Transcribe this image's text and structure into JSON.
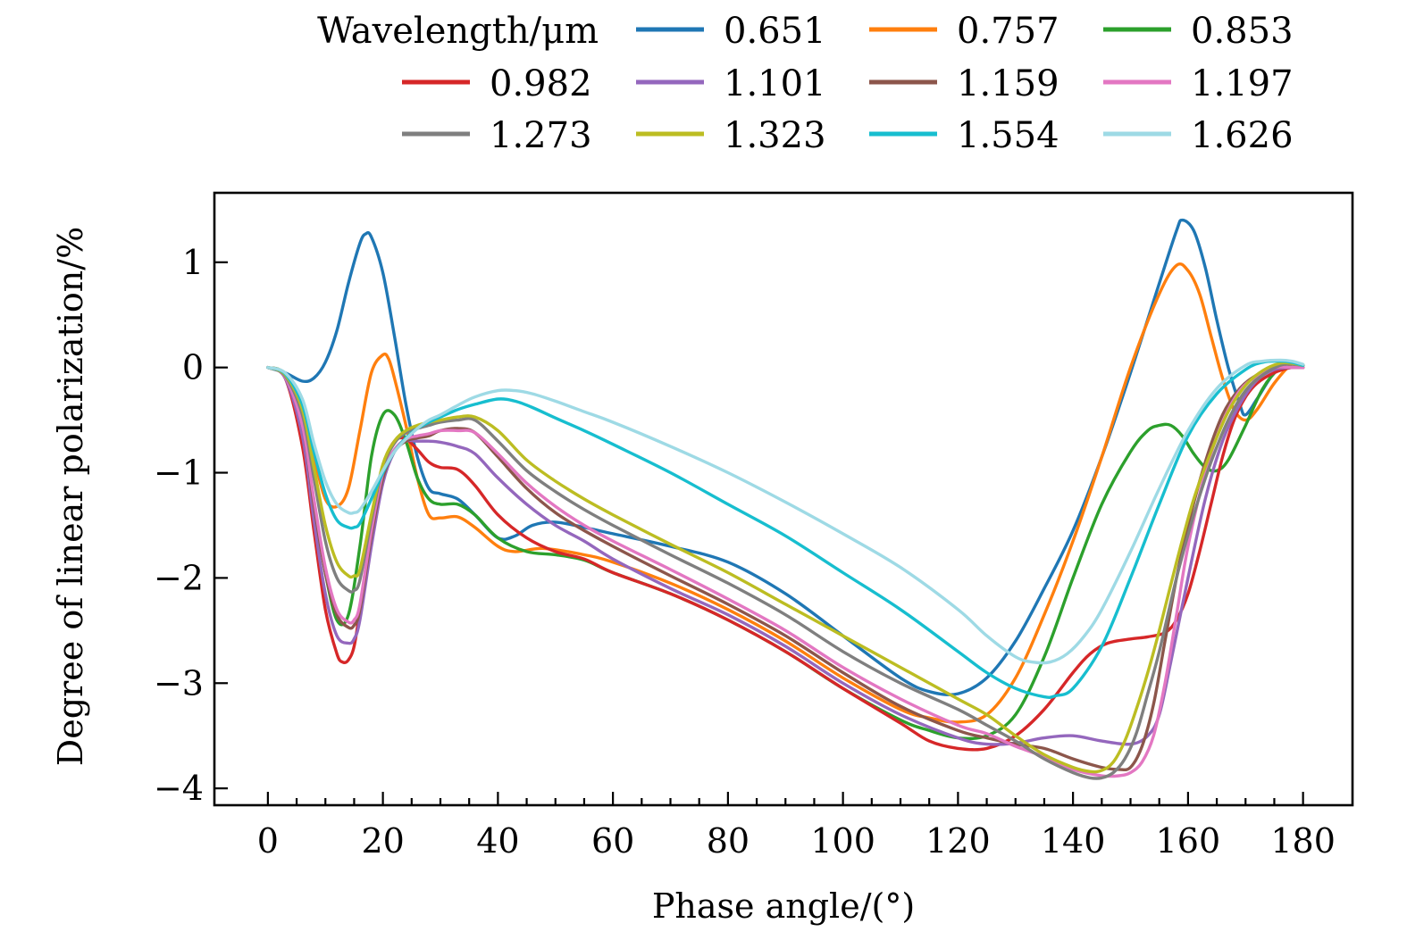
{
  "chart_data": {
    "type": "line",
    "title": "",
    "xlabel": "Phase angle/(°)",
    "ylabel": "Degree of linear polarization/%",
    "xlim": [
      -9.3,
      188.6
    ],
    "ylim": [
      -4.16,
      1.66
    ],
    "xticks": [
      0,
      20,
      40,
      60,
      80,
      100,
      120,
      140,
      160,
      180
    ],
    "xtick_labels": [
      "0",
      "20",
      "40",
      "60",
      "80",
      "100",
      "120",
      "140",
      "160",
      "180"
    ],
    "x_minor_step": 5,
    "yticks": [
      1,
      0,
      -1,
      -2,
      -3,
      -4
    ],
    "ytick_labels": [
      "1",
      "0",
      "−1",
      "−2",
      "−3",
      "−4"
    ],
    "grid": false,
    "legend": {
      "title": "Wavelength/μm",
      "placement": "top",
      "columns": 4
    },
    "series": [
      {
        "name": "0.651",
        "color": "#1f77b4",
        "x": [
          0,
          3,
          6,
          8,
          10,
          12,
          14,
          16,
          17,
          18,
          20,
          22,
          24,
          26,
          28,
          30,
          33,
          36,
          40,
          43,
          46,
          50,
          55,
          60,
          70,
          80,
          90,
          100,
          110,
          115,
          120,
          125,
          130,
          135,
          140,
          145,
          150,
          155,
          158,
          159,
          161,
          163,
          165,
          167,
          169,
          170,
          172,
          175,
          178,
          180
        ],
        "y": [
          0,
          -0.05,
          -0.13,
          -0.1,
          0.05,
          0.35,
          0.8,
          1.18,
          1.27,
          1.24,
          0.9,
          0.3,
          -0.35,
          -0.85,
          -1.15,
          -1.2,
          -1.25,
          -1.4,
          -1.62,
          -1.6,
          -1.5,
          -1.47,
          -1.52,
          -1.58,
          -1.7,
          -1.85,
          -2.15,
          -2.55,
          -2.95,
          -3.08,
          -3.1,
          -2.95,
          -2.6,
          -2.1,
          -1.55,
          -0.85,
          -0.05,
          0.8,
          1.3,
          1.4,
          1.3,
          0.95,
          0.45,
          0.0,
          -0.35,
          -0.45,
          -0.3,
          -0.05,
          0.05,
          0.02
        ]
      },
      {
        "name": "0.757",
        "color": "#ff7f0e",
        "x": [
          0,
          3,
          6,
          8,
          10,
          12,
          14,
          16,
          18,
          20,
          21,
          22,
          24,
          26,
          28,
          30,
          33,
          36,
          40,
          43,
          48,
          55,
          60,
          70,
          80,
          90,
          100,
          110,
          115,
          120,
          125,
          130,
          135,
          140,
          145,
          150,
          155,
          158,
          160,
          162,
          164,
          166,
          168,
          170,
          172,
          175,
          178,
          180
        ],
        "y": [
          0,
          -0.06,
          -0.4,
          -0.85,
          -1.25,
          -1.32,
          -1.15,
          -0.6,
          -0.05,
          0.12,
          0.08,
          -0.1,
          -0.55,
          -1.05,
          -1.4,
          -1.43,
          -1.42,
          -1.52,
          -1.7,
          -1.75,
          -1.72,
          -1.78,
          -1.85,
          -2.05,
          -2.3,
          -2.6,
          -2.95,
          -3.25,
          -3.33,
          -3.37,
          -3.3,
          -2.95,
          -2.35,
          -1.65,
          -0.85,
          0.0,
          0.7,
          0.97,
          0.92,
          0.7,
          0.3,
          -0.1,
          -0.4,
          -0.5,
          -0.4,
          -0.15,
          0.03,
          0.02
        ]
      },
      {
        "name": "0.853",
        "color": "#2ca02c",
        "x": [
          0,
          3,
          6,
          8,
          10,
          12,
          14,
          16,
          18,
          20,
          22,
          24,
          26,
          28,
          30,
          33,
          36,
          40,
          45,
          50,
          55,
          60,
          70,
          80,
          90,
          100,
          110,
          115,
          120,
          125,
          130,
          135,
          140,
          145,
          150,
          153,
          155,
          157,
          159,
          161,
          163,
          165,
          167,
          170,
          173,
          176,
          178,
          180
        ],
        "y": [
          0,
          -0.08,
          -0.6,
          -1.3,
          -1.95,
          -2.4,
          -2.35,
          -1.7,
          -0.85,
          -0.45,
          -0.45,
          -0.7,
          -1.05,
          -1.25,
          -1.3,
          -1.3,
          -1.4,
          -1.62,
          -1.75,
          -1.78,
          -1.83,
          -1.95,
          -2.15,
          -2.4,
          -2.7,
          -3.05,
          -3.35,
          -3.45,
          -3.52,
          -3.5,
          -3.3,
          -2.75,
          -2.0,
          -1.3,
          -0.8,
          -0.6,
          -0.55,
          -0.55,
          -0.65,
          -0.82,
          -0.95,
          -0.98,
          -0.88,
          -0.55,
          -0.2,
          0.0,
          0.04,
          0.02
        ]
      },
      {
        "name": "0.982",
        "color": "#d62728",
        "x": [
          0,
          3,
          6,
          8,
          10,
          12,
          13,
          14,
          15,
          16,
          18,
          20,
          22,
          24,
          26,
          28,
          30,
          33,
          36,
          40,
          45,
          50,
          55,
          60,
          70,
          80,
          90,
          100,
          110,
          115,
          120,
          125,
          130,
          135,
          140,
          143,
          146,
          150,
          153,
          156,
          158,
          160,
          162,
          164,
          166,
          168,
          170,
          172,
          175,
          178,
          180
        ],
        "y": [
          0,
          -0.1,
          -0.75,
          -1.55,
          -2.3,
          -2.72,
          -2.8,
          -2.78,
          -2.65,
          -2.3,
          -1.55,
          -0.95,
          -0.7,
          -0.68,
          -0.78,
          -0.9,
          -0.95,
          -0.97,
          -1.12,
          -1.4,
          -1.62,
          -1.75,
          -1.82,
          -1.95,
          -2.15,
          -2.4,
          -2.7,
          -3.05,
          -3.38,
          -3.55,
          -3.62,
          -3.62,
          -3.5,
          -3.25,
          -2.9,
          -2.72,
          -2.62,
          -2.58,
          -2.56,
          -2.52,
          -2.4,
          -2.15,
          -1.75,
          -1.3,
          -0.85,
          -0.5,
          -0.28,
          -0.15,
          -0.05,
          0.0,
          0.0
        ]
      },
      {
        "name": "1.101",
        "color": "#9467bd",
        "x": [
          0,
          3,
          6,
          8,
          10,
          12,
          14,
          15,
          16,
          18,
          20,
          22,
          24,
          26,
          28,
          30,
          33,
          36,
          40,
          45,
          50,
          55,
          60,
          70,
          80,
          90,
          100,
          110,
          120,
          125,
          130,
          135,
          140,
          145,
          150,
          153,
          155,
          157,
          160,
          163,
          166,
          169,
          172,
          175,
          178,
          180
        ],
        "y": [
          0,
          -0.1,
          -0.65,
          -1.45,
          -2.15,
          -2.55,
          -2.62,
          -2.58,
          -2.4,
          -1.7,
          -1.1,
          -0.8,
          -0.7,
          -0.7,
          -0.7,
          -0.71,
          -0.75,
          -0.82,
          -1.05,
          -1.3,
          -1.5,
          -1.65,
          -1.82,
          -2.1,
          -2.35,
          -2.65,
          -3.0,
          -3.3,
          -3.52,
          -3.58,
          -3.57,
          -3.52,
          -3.5,
          -3.55,
          -3.58,
          -3.5,
          -3.3,
          -2.8,
          -2.0,
          -1.25,
          -0.7,
          -0.35,
          -0.12,
          -0.02,
          0.0,
          0.0
        ]
      },
      {
        "name": "1.159",
        "color": "#8c564b",
        "x": [
          0,
          3,
          6,
          8,
          10,
          12,
          14,
          15,
          16,
          18,
          20,
          22,
          24,
          26,
          28,
          30,
          33,
          36,
          40,
          45,
          50,
          55,
          60,
          70,
          80,
          90,
          100,
          110,
          120,
          125,
          130,
          135,
          140,
          145,
          148,
          150,
          152,
          154,
          156,
          158,
          160,
          163,
          166,
          169,
          172,
          175,
          178,
          180
        ],
        "y": [
          0,
          -0.09,
          -0.55,
          -1.3,
          -1.95,
          -2.35,
          -2.47,
          -2.45,
          -2.3,
          -1.6,
          -1.05,
          -0.8,
          -0.7,
          -0.67,
          -0.65,
          -0.6,
          -0.58,
          -0.62,
          -0.85,
          -1.15,
          -1.38,
          -1.55,
          -1.7,
          -1.98,
          -2.25,
          -2.55,
          -2.9,
          -3.22,
          -3.45,
          -3.52,
          -3.58,
          -3.62,
          -3.72,
          -3.8,
          -3.82,
          -3.8,
          -3.6,
          -3.2,
          -2.6,
          -2.0,
          -1.5,
          -0.9,
          -0.45,
          -0.2,
          -0.07,
          0.0,
          0.0,
          0.0
        ]
      },
      {
        "name": "1.197",
        "color": "#e377c2",
        "x": [
          0,
          3,
          6,
          8,
          10,
          12,
          14,
          15,
          16,
          18,
          20,
          22,
          24,
          26,
          28,
          30,
          33,
          36,
          40,
          45,
          50,
          55,
          60,
          70,
          80,
          90,
          100,
          110,
          120,
          125,
          130,
          135,
          140,
          145,
          148,
          150,
          152,
          154,
          156,
          158,
          160,
          163,
          166,
          169,
          172,
          175,
          178,
          180
        ],
        "y": [
          0,
          -0.09,
          -0.55,
          -1.25,
          -1.9,
          -2.3,
          -2.42,
          -2.4,
          -2.25,
          -1.55,
          -1.0,
          -0.78,
          -0.68,
          -0.65,
          -0.63,
          -0.6,
          -0.6,
          -0.62,
          -0.82,
          -1.1,
          -1.32,
          -1.5,
          -1.65,
          -1.92,
          -2.2,
          -2.5,
          -2.85,
          -3.15,
          -3.4,
          -3.48,
          -3.6,
          -3.7,
          -3.82,
          -3.88,
          -3.88,
          -3.85,
          -3.75,
          -3.5,
          -3.0,
          -2.35,
          -1.7,
          -1.0,
          -0.52,
          -0.22,
          -0.08,
          0.0,
          0.0,
          0.0
        ]
      },
      {
        "name": "1.273",
        "color": "#7f7f7f",
        "x": [
          0,
          3,
          6,
          8,
          10,
          12,
          14,
          15,
          16,
          18,
          20,
          22,
          24,
          26,
          28,
          30,
          33,
          36,
          40,
          45,
          50,
          55,
          60,
          70,
          80,
          90,
          100,
          110,
          120,
          125,
          130,
          135,
          140,
          143,
          145,
          147,
          149,
          151,
          153,
          155,
          158,
          161,
          164,
          167,
          170,
          173,
          176,
          178,
          180
        ],
        "y": [
          0,
          -0.08,
          -0.45,
          -1.05,
          -1.65,
          -2.0,
          -2.12,
          -2.12,
          -2.02,
          -1.45,
          -0.95,
          -0.72,
          -0.62,
          -0.58,
          -0.55,
          -0.52,
          -0.5,
          -0.5,
          -0.7,
          -0.98,
          -1.18,
          -1.35,
          -1.5,
          -1.78,
          -2.05,
          -2.35,
          -2.7,
          -3.0,
          -3.25,
          -3.4,
          -3.55,
          -3.72,
          -3.85,
          -3.9,
          -3.9,
          -3.85,
          -3.72,
          -3.48,
          -3.1,
          -2.7,
          -2.0,
          -1.4,
          -0.9,
          -0.5,
          -0.22,
          -0.07,
          0.02,
          0.03,
          0.02
        ]
      },
      {
        "name": "1.323",
        "color": "#bcbd22",
        "x": [
          0,
          3,
          6,
          8,
          10,
          12,
          14,
          15,
          16,
          18,
          20,
          22,
          24,
          26,
          28,
          30,
          33,
          36,
          40,
          45,
          50,
          55,
          60,
          70,
          80,
          90,
          100,
          110,
          120,
          125,
          130,
          135,
          140,
          143,
          145,
          147,
          149,
          151,
          153,
          155,
          158,
          161,
          164,
          167,
          170,
          173,
          176,
          178,
          180
        ],
        "y": [
          0,
          -0.07,
          -0.4,
          -0.95,
          -1.5,
          -1.85,
          -1.98,
          -1.98,
          -1.92,
          -1.4,
          -0.92,
          -0.7,
          -0.6,
          -0.55,
          -0.52,
          -0.5,
          -0.47,
          -0.47,
          -0.6,
          -0.88,
          -1.08,
          -1.25,
          -1.4,
          -1.68,
          -1.95,
          -2.25,
          -2.55,
          -2.85,
          -3.15,
          -3.3,
          -3.5,
          -3.68,
          -3.8,
          -3.84,
          -3.83,
          -3.75,
          -3.55,
          -3.25,
          -2.9,
          -2.5,
          -1.85,
          -1.25,
          -0.8,
          -0.42,
          -0.17,
          -0.03,
          0.04,
          0.04,
          0.02
        ]
      },
      {
        "name": "1.554",
        "color": "#17becf",
        "x": [
          0,
          3,
          6,
          8,
          10,
          12,
          14,
          15,
          16,
          18,
          20,
          22,
          24,
          26,
          28,
          30,
          33,
          36,
          40,
          43,
          46,
          50,
          55,
          60,
          70,
          80,
          90,
          100,
          110,
          120,
          125,
          130,
          135,
          137,
          140,
          145,
          150,
          155,
          160,
          165,
          170,
          173,
          176,
          178,
          180
        ],
        "y": [
          0,
          -0.06,
          -0.35,
          -0.8,
          -1.2,
          -1.45,
          -1.52,
          -1.52,
          -1.48,
          -1.25,
          -1.0,
          -0.8,
          -0.67,
          -0.58,
          -0.52,
          -0.47,
          -0.4,
          -0.35,
          -0.3,
          -0.32,
          -0.38,
          -0.48,
          -0.6,
          -0.73,
          -1.0,
          -1.3,
          -1.6,
          -1.95,
          -2.3,
          -2.7,
          -2.9,
          -3.05,
          -3.13,
          -3.12,
          -3.05,
          -2.65,
          -2.0,
          -1.3,
          -0.65,
          -0.25,
          -0.02,
          0.05,
          0.06,
          0.05,
          0.02
        ]
      },
      {
        "name": "1.626",
        "color": "#9edae5",
        "x": [
          0,
          3,
          6,
          8,
          10,
          12,
          14,
          15,
          16,
          18,
          20,
          22,
          24,
          26,
          28,
          30,
          33,
          36,
          40,
          43,
          46,
          50,
          55,
          60,
          70,
          80,
          90,
          100,
          110,
          120,
          125,
          130,
          133,
          136,
          139,
          142,
          145,
          150,
          155,
          160,
          165,
          170,
          173,
          176,
          178,
          180
        ],
        "y": [
          0,
          -0.05,
          -0.3,
          -0.72,
          -1.08,
          -1.3,
          -1.38,
          -1.38,
          -1.35,
          -1.18,
          -0.98,
          -0.8,
          -0.68,
          -0.58,
          -0.5,
          -0.45,
          -0.36,
          -0.28,
          -0.22,
          -0.22,
          -0.25,
          -0.32,
          -0.42,
          -0.52,
          -0.75,
          -1.0,
          -1.28,
          -1.58,
          -1.9,
          -2.3,
          -2.55,
          -2.75,
          -2.8,
          -2.8,
          -2.72,
          -2.55,
          -2.3,
          -1.75,
          -1.15,
          -0.6,
          -0.2,
          0.02,
          0.06,
          0.07,
          0.06,
          0.03
        ]
      }
    ]
  }
}
